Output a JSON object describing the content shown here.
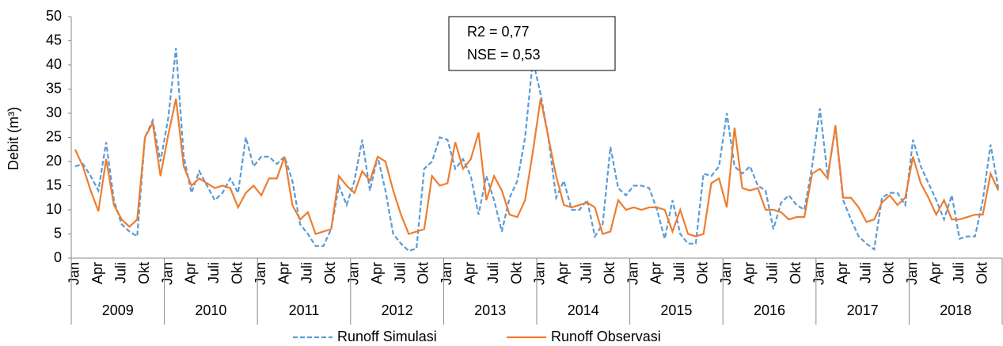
{
  "chart_data": {
    "type": "line",
    "y_label": "Debit (m³)",
    "annotations": [
      "R2 = 0,77",
      "NSE = 0,53"
    ],
    "categories": [
      "Jan",
      null,
      null,
      "Apr",
      null,
      null,
      "Juli",
      null,
      null,
      "Okt",
      null,
      null,
      "Jan",
      null,
      null,
      "Apr",
      null,
      null,
      "Juli",
      null,
      null,
      "Okt",
      null,
      null,
      "Jan",
      null,
      null,
      "Apr",
      null,
      null,
      "Juli",
      null,
      null,
      "Okt",
      null,
      null,
      "Jan",
      null,
      null,
      "Apr",
      null,
      null,
      "Juli",
      null,
      null,
      "Okt",
      null,
      null,
      "Jan",
      null,
      null,
      "Apr",
      null,
      null,
      "Juli",
      null,
      null,
      "Okt",
      null,
      null,
      "Jan",
      null,
      null,
      "Apr",
      null,
      null,
      "Juli",
      null,
      null,
      "Okt",
      null,
      null,
      "Jan",
      null,
      null,
      "Apr",
      null,
      null,
      "Juli",
      null,
      null,
      "Okt",
      null,
      null,
      "Jan",
      null,
      null,
      "Apr",
      null,
      null,
      "Juli",
      null,
      null,
      "Okt",
      null,
      null,
      "Jan",
      null,
      null,
      "Apr",
      null,
      null,
      "Juli",
      null,
      null,
      "Okt",
      null,
      null,
      "Jan",
      null,
      null,
      "Apr",
      null,
      null,
      "Juli",
      null,
      null,
      "Okt",
      null,
      null
    ],
    "groups": [
      "2009",
      "2010",
      "2011",
      "2012",
      "2013",
      "2014",
      "2015",
      "2016",
      "2017",
      "2018"
    ],
    "series": [
      {
        "name": "Runoff Simulasi",
        "color": "#5b9bd5",
        "style": "dashed",
        "values": [
          19,
          19.5,
          17,
          14,
          24,
          12,
          7,
          5.5,
          4.5,
          25,
          28.5,
          20,
          29,
          43.5,
          21,
          13.5,
          18,
          15,
          12,
          13.5,
          16.5,
          13.5,
          25,
          19,
          21,
          21,
          19.5,
          21,
          16,
          7,
          5,
          2.5,
          2.5,
          6,
          15,
          11,
          16,
          24.5,
          14,
          21,
          14,
          5,
          3,
          1.5,
          2,
          18.5,
          20,
          25,
          24.5,
          18.5,
          20.5,
          17,
          9,
          17,
          12,
          5.5,
          12.5,
          16,
          25,
          41,
          34,
          25,
          12.5,
          16,
          10,
          10,
          12,
          4.5,
          7,
          23,
          14.5,
          13,
          15,
          15,
          14.5,
          10,
          4,
          12,
          5,
          3,
          3,
          17.5,
          17,
          19,
          30,
          19,
          17.5,
          19,
          15,
          14,
          6,
          11.5,
          13,
          11,
          10,
          19,
          31,
          17,
          27,
          12,
          8,
          4.5,
          3,
          1.8,
          12.5,
          13.5,
          13.5,
          11,
          24.5,
          19,
          15.5,
          12,
          8,
          13,
          4,
          4.5,
          4.5,
          12,
          23.5,
          14.5
        ]
      },
      {
        "name": "Runoff Observasi",
        "color": "#ed7d31",
        "style": "solid",
        "values": [
          22.5,
          19,
          14,
          9.7,
          20.5,
          11,
          8,
          6.5,
          8,
          25,
          28,
          17,
          25.5,
          33,
          19,
          15,
          16.5,
          15.5,
          14.5,
          15,
          14.5,
          10.5,
          13.5,
          15,
          13,
          16.5,
          16.5,
          21,
          11,
          8,
          9.5,
          5,
          5.5,
          6,
          17,
          15,
          13.5,
          18,
          16,
          21,
          20,
          14,
          9,
          5,
          5.5,
          6,
          17,
          15,
          15.5,
          24,
          18.5,
          20.5,
          26,
          12,
          17,
          14,
          9,
          8.5,
          12,
          22,
          33,
          25,
          17,
          11,
          10.5,
          11,
          11.5,
          10.5,
          5,
          5.5,
          12,
          10,
          10.5,
          10,
          10.5,
          10.5,
          10,
          5.5,
          10,
          5,
          4.5,
          5,
          15.5,
          16.5,
          10.5,
          27,
          14.5,
          14,
          14.5,
          10,
          10,
          9.5,
          8,
          8.5,
          8.5,
          17.5,
          18.5,
          16.5,
          27.5,
          12.5,
          12.5,
          10.5,
          7.5,
          8,
          11.5,
          13,
          11,
          12.5,
          21,
          15.5,
          12.5,
          9,
          12,
          8,
          8,
          8.5,
          9,
          9,
          17.5,
          14
        ]
      }
    ],
    "ylim": [
      0,
      50
    ],
    "yticks": [
      0,
      5,
      10,
      15,
      20,
      25,
      30,
      35,
      40,
      45,
      50
    ],
    "grid": false
  }
}
